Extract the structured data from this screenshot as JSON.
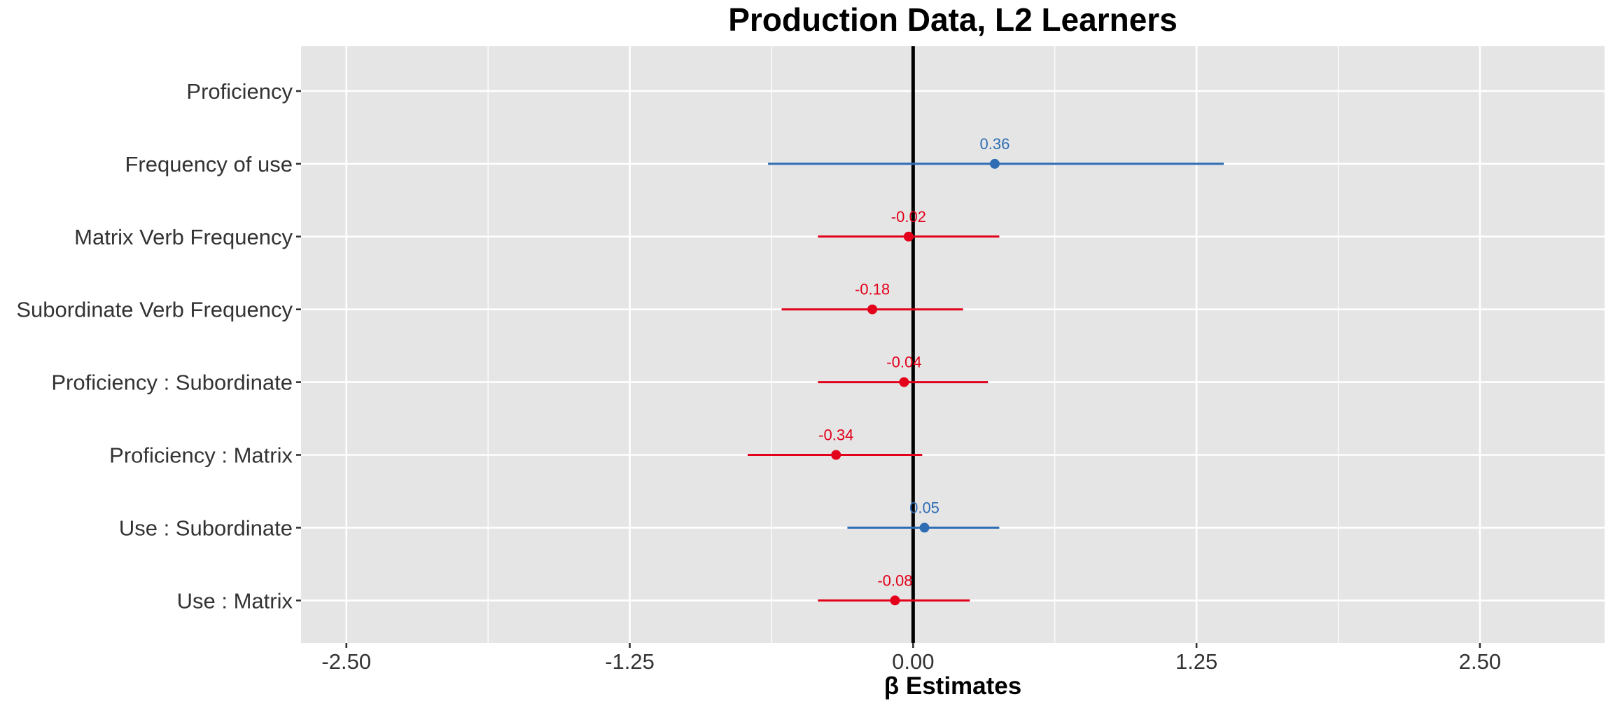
{
  "chart_data": {
    "type": "scatter",
    "subtype": "coefficient-plot",
    "title": "Production Data, L2 Learners",
    "xlabel": "β Estimates",
    "ylabel": "",
    "xlim": [
      -2.7,
      3.05
    ],
    "xticks": [
      -2.5,
      -1.25,
      0,
      1.25,
      2.5
    ],
    "xtick_labels": [
      "-2.50",
      "-1.25",
      "0.00",
      "1.25",
      "2.50"
    ],
    "grid": true,
    "reference_line": 0,
    "colors": {
      "positive": "#2E6DB4",
      "negative": "#E2001A",
      "panel_background": "#E5E5E5",
      "grid": "#FFFFFF",
      "reference_line": "#000000"
    },
    "terms": [
      {
        "label": "Proficiency",
        "estimate": null,
        "low": null,
        "high": null,
        "value_label": ""
      },
      {
        "label": "Frequency of use",
        "estimate": 0.36,
        "low": -0.64,
        "high": 1.37,
        "value_label": "0.36"
      },
      {
        "label": "Matrix Verb Frequency",
        "estimate": -0.02,
        "low": -0.42,
        "high": 0.38,
        "value_label": "-0.02"
      },
      {
        "label": "Subordinate Verb Frequency",
        "estimate": -0.18,
        "low": -0.58,
        "high": 0.22,
        "value_label": "-0.18"
      },
      {
        "label": "Proficiency : Subordinate",
        "estimate": -0.04,
        "low": -0.42,
        "high": 0.33,
        "value_label": "-0.04"
      },
      {
        "label": "Proficiency : Matrix",
        "estimate": -0.34,
        "low": -0.73,
        "high": 0.04,
        "value_label": "-0.34"
      },
      {
        "label": "Use : Subordinate",
        "estimate": 0.05,
        "low": -0.29,
        "high": 0.38,
        "value_label": "0.05"
      },
      {
        "label": "Use : Matrix",
        "estimate": -0.08,
        "low": -0.42,
        "high": 0.25,
        "value_label": "-0.08"
      }
    ]
  }
}
